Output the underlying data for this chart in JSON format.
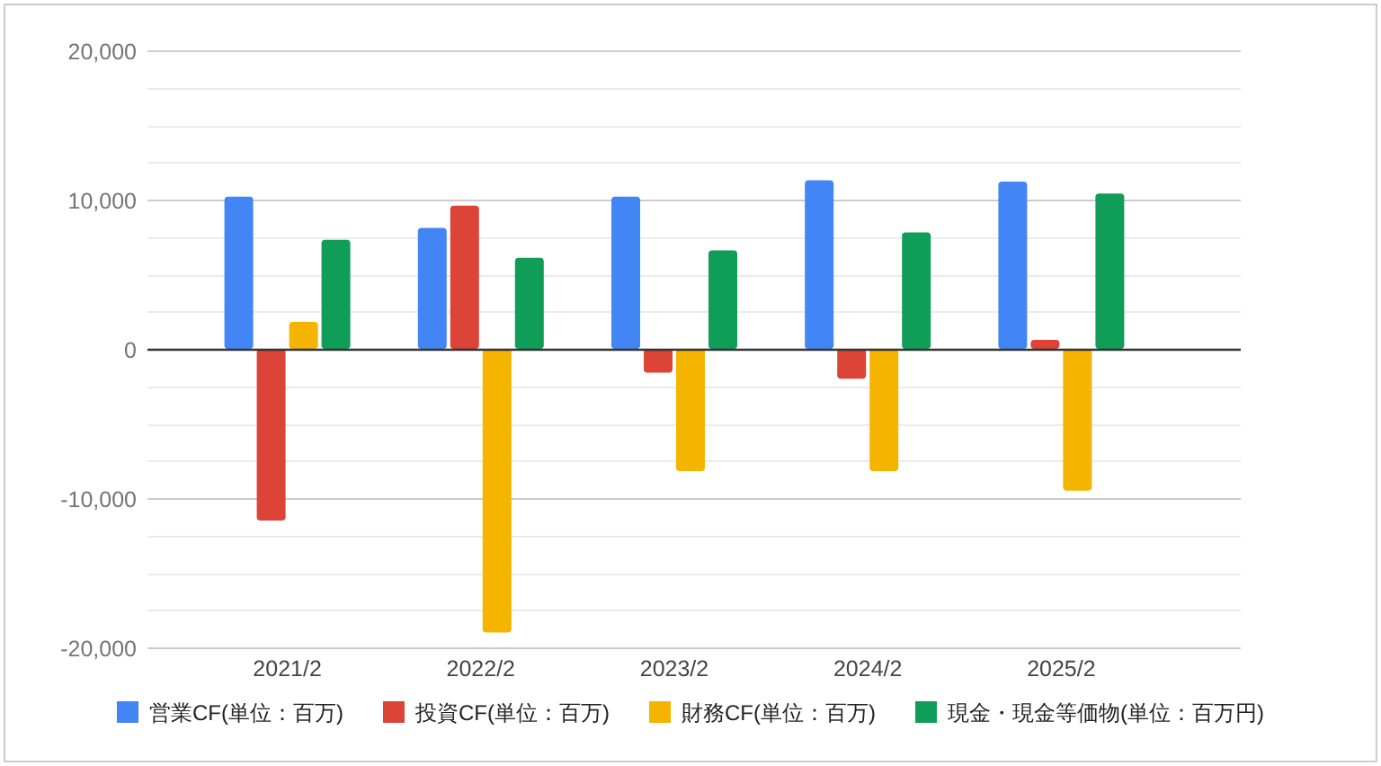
{
  "chart_data": {
    "type": "bar",
    "categories": [
      "2021/2",
      "2022/2",
      "2023/2",
      "2024/2",
      "2025/2"
    ],
    "series": [
      {
        "name": "営業CF(単位：百万)",
        "color": "#4285f4",
        "values": [
          10200,
          8100,
          10200,
          11300,
          11200
        ]
      },
      {
        "name": "投資CF(単位：百万)",
        "color": "#db4437",
        "values": [
          -11500,
          9600,
          -1600,
          -2000,
          600
        ]
      },
      {
        "name": "財務CF(単位：百万)",
        "color": "#f4b400",
        "values": [
          1800,
          -19000,
          -8200,
          -8200,
          -9500
        ]
      },
      {
        "name": "現金・現金等価物(単位：百万円)",
        "color": "#0f9d58",
        "values": [
          7300,
          6100,
          6600,
          7800,
          10400
        ]
      }
    ],
    "ylim": [
      -20000,
      20000
    ],
    "yticks": [
      {
        "value": -20000,
        "label": "-20,000"
      },
      {
        "value": -17500,
        "label": null
      },
      {
        "value": -15000,
        "label": null
      },
      {
        "value": -12500,
        "label": null
      },
      {
        "value": -10000,
        "label": "-10,000"
      },
      {
        "value": -7500,
        "label": null
      },
      {
        "value": -5000,
        "label": null
      },
      {
        "value": -2500,
        "label": null
      },
      0,
      {
        "value": 2500,
        "label": null
      },
      {
        "value": 5000,
        "label": null
      },
      {
        "value": 7500,
        "label": null
      },
      {
        "value": 10000,
        "label": "10,000"
      },
      {
        "value": 12500,
        "label": null
      },
      {
        "value": 15000,
        "label": null
      },
      {
        "value": 17500,
        "label": null
      },
      {
        "value": 20000,
        "label": "20,000"
      }
    ],
    "grid": "y",
    "legend": "bottom"
  }
}
